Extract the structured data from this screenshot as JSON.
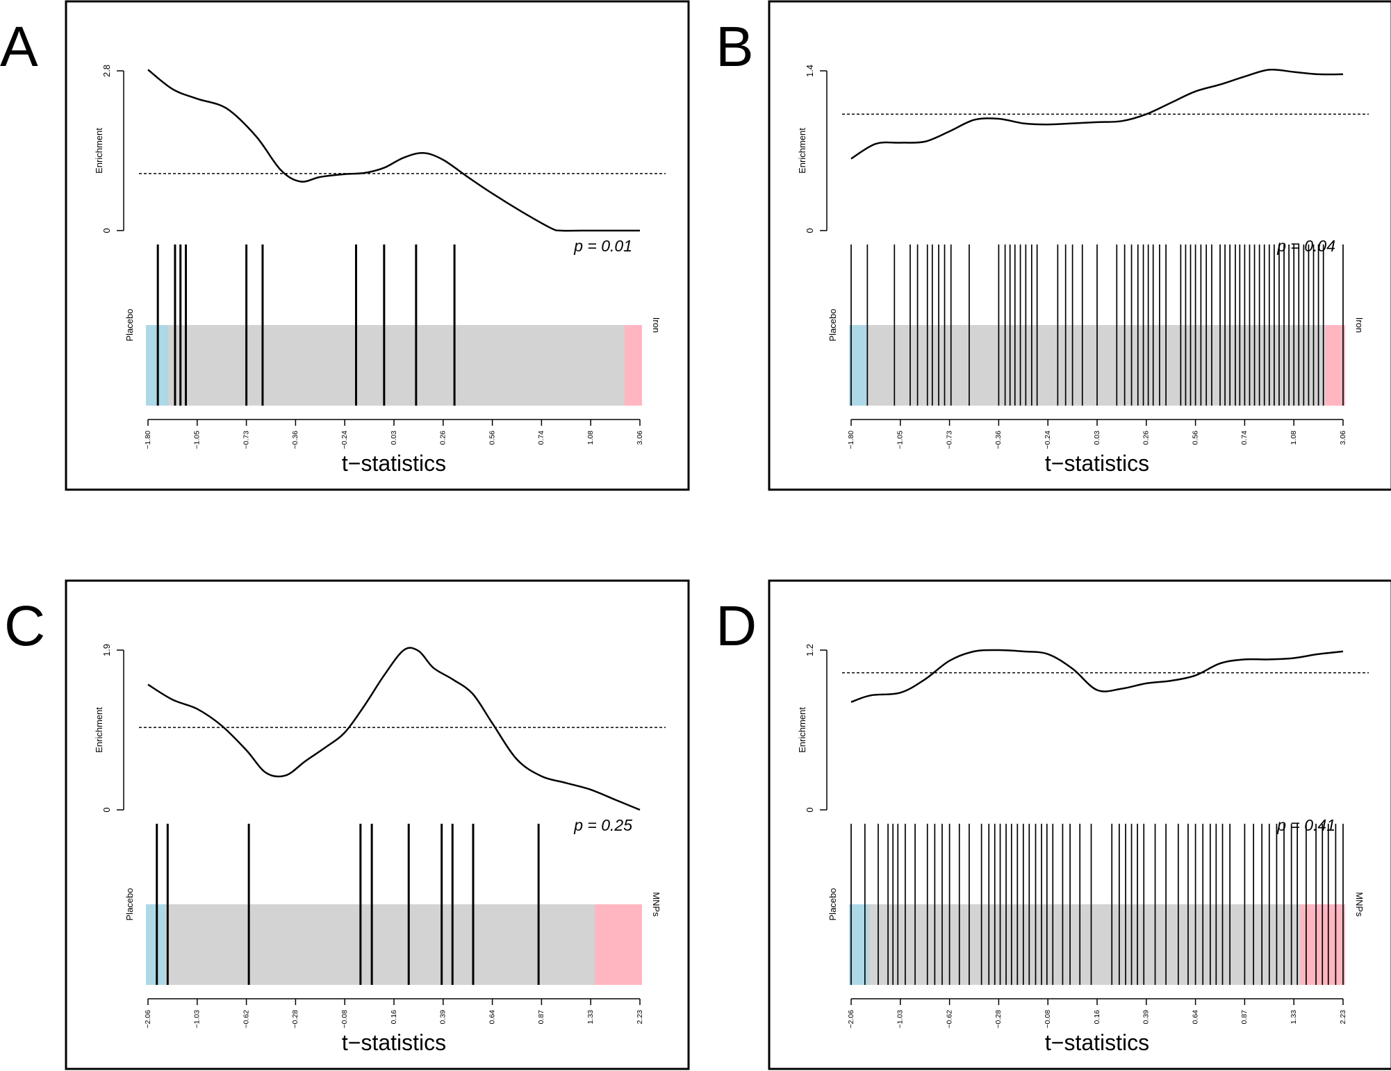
{
  "figure": {
    "xlabel": "t−statistics",
    "ylabel": "Enrichment",
    "colors": {
      "left_band": "#ADD8E6",
      "right_band": "#FFB6C1",
      "middle_band": "#D3D3D3",
      "curve": "#000000",
      "threshold": "#000000"
    }
  },
  "chart_data": [
    {
      "panel": "A",
      "type": "line",
      "left_label": "Placebo",
      "right_label": "Iron",
      "p_value": "p = 0.01",
      "ylim": [
        0,
        2.8
      ],
      "yticks": [
        "0",
        "2.8"
      ],
      "threshold": 1.0,
      "xtick_labels": [
        "−1.80",
        "−1.05",
        "−0.73",
        "−0.36",
        "−0.24",
        "0.03",
        "0.26",
        "0.56",
        "0.74",
        "1.08",
        "3.06"
      ],
      "x_range": [
        0,
        1
      ],
      "curve": {
        "x": [
          0,
          0.05,
          0.1,
          0.16,
          0.22,
          0.27,
          0.31,
          0.35,
          0.4,
          0.44,
          0.48,
          0.52,
          0.56,
          0.6,
          0.65,
          0.7,
          0.76,
          0.82,
          0.84,
          0.88,
          0.94,
          1.0
        ],
        "y": [
          2.82,
          2.48,
          2.31,
          2.14,
          1.65,
          1.06,
          0.86,
          0.94,
          0.99,
          1.01,
          1.1,
          1.28,
          1.36,
          1.24,
          0.94,
          0.65,
          0.33,
          0.04,
          0.0,
          0.0,
          0.0,
          0.0
        ]
      },
      "bands": {
        "left_end": 0.045,
        "right_start": 0.965
      },
      "hits": [
        0.02,
        0.055,
        0.066,
        0.077,
        0.2,
        0.233,
        0.423,
        0.48,
        0.545,
        0.623
      ]
    },
    {
      "panel": "B",
      "type": "line",
      "left_label": "Placebo",
      "right_label": "Iron",
      "p_value": "p = 0.04",
      "ylim": [
        0,
        1.4
      ],
      "yticks": [
        "0",
        "1.4"
      ],
      "threshold": 1.02,
      "xtick_labels": [
        "−1.80",
        "−1.05",
        "−0.73",
        "−0.36",
        "−0.24",
        "0.03",
        "0.26",
        "0.56",
        "0.74",
        "1.08",
        "3.06"
      ],
      "x_range": [
        0,
        1
      ],
      "curve": {
        "x": [
          0,
          0.05,
          0.1,
          0.15,
          0.2,
          0.25,
          0.3,
          0.35,
          0.4,
          0.45,
          0.5,
          0.55,
          0.6,
          0.65,
          0.7,
          0.75,
          0.8,
          0.85,
          0.9,
          0.95,
          1.0
        ],
        "y": [
          0.63,
          0.76,
          0.77,
          0.78,
          0.87,
          0.97,
          0.98,
          0.94,
          0.93,
          0.94,
          0.95,
          0.96,
          1.02,
          1.12,
          1.22,
          1.28,
          1.35,
          1.41,
          1.39,
          1.37,
          1.37
        ]
      },
      "bands": {
        "left_end": 0.035,
        "right_start": 0.96
      },
      "hits": [
        0.0,
        0.033,
        0.088,
        0.12,
        0.135,
        0.155,
        0.165,
        0.178,
        0.19,
        0.203,
        0.24,
        0.3,
        0.313,
        0.323,
        0.333,
        0.344,
        0.355,
        0.367,
        0.378,
        0.42,
        0.436,
        0.45,
        0.47,
        0.5,
        0.54,
        0.556,
        0.57,
        0.583,
        0.594,
        0.604,
        0.614,
        0.627,
        0.64,
        0.67,
        0.68,
        0.69,
        0.7,
        0.711,
        0.722,
        0.733,
        0.75,
        0.76,
        0.77,
        0.781,
        0.79,
        0.8,
        0.81,
        0.82,
        0.83,
        0.84,
        0.85,
        0.86,
        0.87,
        0.88,
        0.89,
        0.9,
        0.91,
        0.92,
        0.93,
        0.94,
        0.95,
        0.96,
        1.0
      ]
    },
    {
      "panel": "C",
      "type": "line",
      "left_label": "Placebo",
      "right_label": "MNPs",
      "p_value": "p = 0.25",
      "ylim": [
        0,
        1.9
      ],
      "yticks": [
        "0",
        "1.9"
      ],
      "threshold": 0.98,
      "xtick_labels": [
        "−2.06",
        "−1.03",
        "−0.62",
        "−0.28",
        "−0.08",
        "0.16",
        "0.39",
        "0.64",
        "0.87",
        "1.33",
        "2.23"
      ],
      "x_range": [
        0,
        1
      ],
      "curve": {
        "x": [
          0,
          0.05,
          0.1,
          0.15,
          0.2,
          0.24,
          0.28,
          0.32,
          0.36,
          0.4,
          0.44,
          0.48,
          0.52,
          0.55,
          0.58,
          0.62,
          0.66,
          0.7,
          0.75,
          0.8,
          0.85,
          0.9,
          0.95,
          1.0
        ],
        "y": [
          1.49,
          1.31,
          1.2,
          1.0,
          0.71,
          0.44,
          0.41,
          0.58,
          0.74,
          0.92,
          1.24,
          1.6,
          1.9,
          1.89,
          1.69,
          1.55,
          1.38,
          1.03,
          0.6,
          0.4,
          0.32,
          0.24,
          0.12,
          0.0
        ]
      },
      "bands": {
        "left_end": 0.04,
        "right_start": 0.905
      },
      "hits": [
        0.018,
        0.04,
        0.205,
        0.432,
        0.455,
        0.53,
        0.597,
        0.619,
        0.661,
        0.794
      ]
    },
    {
      "panel": "D",
      "type": "line",
      "left_label": "Placebo",
      "right_label": "MNPs",
      "p_value": "p = 0.41",
      "ylim": [
        0,
        1.2
      ],
      "yticks": [
        "0",
        "1.2"
      ],
      "threshold": 1.03,
      "xtick_labels": [
        "−2.06",
        "−1.03",
        "−0.62",
        "−0.28",
        "−0.08",
        "0.16",
        "0.39",
        "0.64",
        "0.87",
        "1.33",
        "2.23"
      ],
      "x_range": [
        0,
        1
      ],
      "curve": {
        "x": [
          0,
          0.04,
          0.1,
          0.15,
          0.2,
          0.25,
          0.3,
          0.35,
          0.4,
          0.45,
          0.5,
          0.55,
          0.6,
          0.65,
          0.7,
          0.75,
          0.8,
          0.85,
          0.9,
          0.95,
          1.0
        ],
        "y": [
          0.81,
          0.86,
          0.88,
          0.98,
          1.12,
          1.19,
          1.2,
          1.19,
          1.17,
          1.06,
          0.9,
          0.91,
          0.95,
          0.97,
          1.01,
          1.1,
          1.13,
          1.13,
          1.14,
          1.17,
          1.19
        ]
      },
      "bands": {
        "left_end": 0.04,
        "right_start": 0.91
      },
      "hits": [
        0.0,
        0.028,
        0.055,
        0.075,
        0.085,
        0.095,
        0.11,
        0.13,
        0.155,
        0.17,
        0.185,
        0.2,
        0.22,
        0.24,
        0.265,
        0.28,
        0.292,
        0.303,
        0.315,
        0.326,
        0.338,
        0.35,
        0.362,
        0.375,
        0.387,
        0.398,
        0.41,
        0.43,
        0.445,
        0.465,
        0.488,
        0.53,
        0.545,
        0.558,
        0.57,
        0.582,
        0.595,
        0.618,
        0.64,
        0.665,
        0.685,
        0.7,
        0.715,
        0.73,
        0.742,
        0.755,
        0.77,
        0.8,
        0.818,
        0.835,
        0.85,
        0.865,
        0.88,
        0.895,
        0.907,
        0.925,
        0.945,
        0.958,
        0.97,
        0.985,
        1.0
      ]
    }
  ]
}
